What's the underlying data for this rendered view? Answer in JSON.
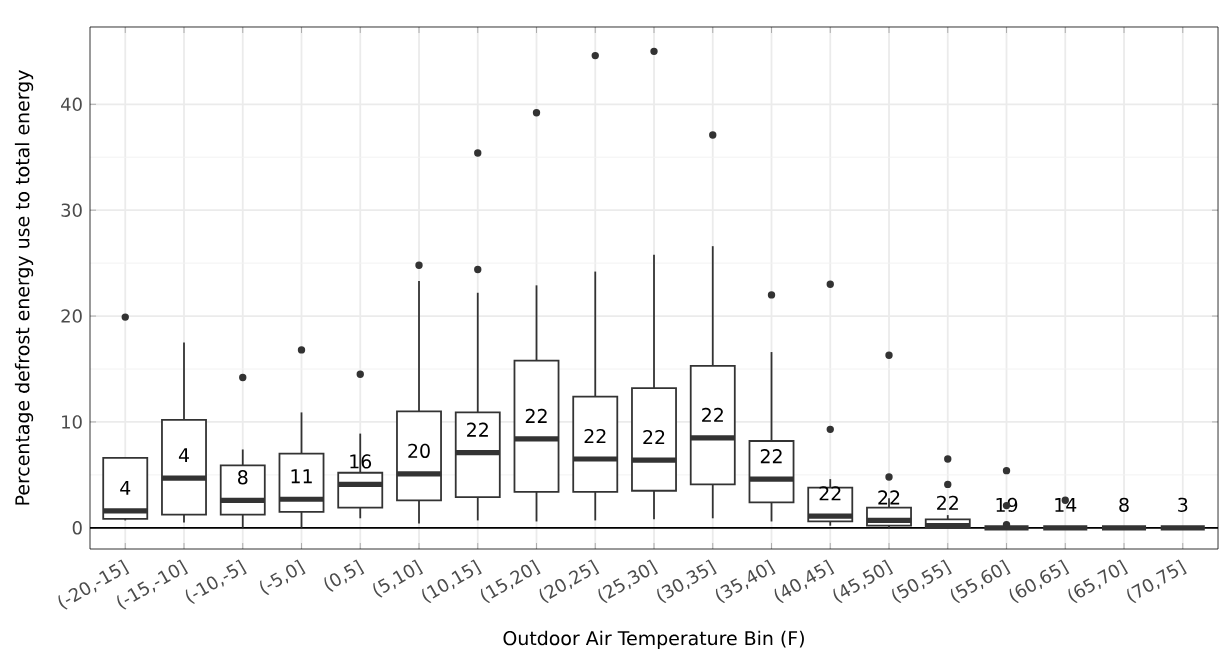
{
  "chart_data": {
    "type": "box",
    "xlabel": "Outdoor Air Temperature Bin (F)",
    "ylabel": "Percentage defrost energy use to total energy",
    "categories": [
      "(-20,-15]",
      "(-15,-10]",
      "(-10,-5]",
      "(-5,0]",
      "(0,5]",
      "(5,10]",
      "(10,15]",
      "(15,20]",
      "(20,25]",
      "(25,30]",
      "(30,35]",
      "(35,40]",
      "(40,45]",
      "(45,50]",
      "(50,55]",
      "(55,60]",
      "(60,65]",
      "(65,70]",
      "(70,75]"
    ],
    "boxes": [
      {
        "low": 0.7,
        "q1": 0.85,
        "median": 1.6,
        "q3": 6.6,
        "high": 6.6,
        "outliers": [
          19.9
        ]
      },
      {
        "low": 0.5,
        "q1": 1.25,
        "median": 4.7,
        "q3": 10.2,
        "high": 17.5
      },
      {
        "low": 0,
        "q1": 1.25,
        "median": 2.6,
        "q3": 5.9,
        "high": 7.4,
        "outliers": [
          14.2
        ]
      },
      {
        "low": 0,
        "q1": 1.5,
        "median": 2.7,
        "q3": 7.0,
        "high": 10.9,
        "outliers": [
          16.8
        ]
      },
      {
        "low": 0.9,
        "q1": 1.9,
        "median": 4.1,
        "q3": 5.2,
        "high": 8.9,
        "outliers": [
          14.5
        ]
      },
      {
        "low": 0.4,
        "q1": 2.6,
        "median": 5.1,
        "q3": 11.0,
        "high": 23.3,
        "outliers": [
          24.8
        ]
      },
      {
        "low": 0.7,
        "q1": 2.9,
        "median": 7.1,
        "q3": 10.9,
        "high": 22.2,
        "outliers": [
          35.4,
          24.4
        ]
      },
      {
        "low": 0.6,
        "q1": 3.4,
        "median": 8.4,
        "q3": 15.8,
        "high": 22.9,
        "outliers": [
          39.2
        ]
      },
      {
        "low": 0.7,
        "q1": 3.4,
        "median": 6.5,
        "q3": 12.4,
        "high": 24.2,
        "outliers": [
          44.6
        ]
      },
      {
        "low": 0.8,
        "q1": 3.5,
        "median": 6.4,
        "q3": 13.2,
        "high": 25.8,
        "outliers": [
          45.0
        ]
      },
      {
        "low": 0.9,
        "q1": 4.1,
        "median": 8.5,
        "q3": 15.3,
        "high": 26.6,
        "outliers": [
          37.1
        ]
      },
      {
        "low": 0.6,
        "q1": 2.4,
        "median": 4.6,
        "q3": 8.2,
        "high": 16.6,
        "outliers": [
          22.0
        ]
      },
      {
        "low": 0.2,
        "q1": 0.6,
        "median": 1.1,
        "q3": 3.8,
        "high": 4.6,
        "outliers": [
          23.0,
          9.3
        ]
      },
      {
        "low": 0,
        "q1": 0.2,
        "median": 0.7,
        "q3": 1.9,
        "high": 2.8,
        "outliers": [
          16.3,
          4.8
        ]
      },
      {
        "low": 0,
        "q1": 0.05,
        "median": 0.2,
        "q3": 0.8,
        "high": 1.2,
        "outliers": [
          6.5,
          4.1
        ]
      },
      {
        "low": 0,
        "q1": 0,
        "median": 0,
        "q3": 0,
        "high": 0,
        "outliers": [
          5.4,
          2.1,
          0.3
        ]
      },
      {
        "low": 0,
        "q1": 0,
        "median": 0,
        "q3": 0,
        "high": 0,
        "outliers": [
          2.6
        ]
      },
      {
        "low": 0,
        "q1": 0,
        "median": 0,
        "q3": 0,
        "high": 0
      },
      {
        "low": 0,
        "q1": 0,
        "median": 0,
        "q3": 0,
        "high": 0
      }
    ],
    "color": "#333333",
    "ylim": [
      -2,
      47.3
    ],
    "yticks": [
      0,
      10,
      20,
      30,
      40
    ],
    "grid": true,
    "ref_lines": [
      {
        "axis": "y",
        "value": 0,
        "color": "#000000"
      }
    ],
    "annotations": [
      "4",
      "4",
      "8",
      "11",
      "16",
      "20",
      "22",
      "22",
      "22",
      "22",
      "22",
      "22",
      "22",
      "22",
      "22",
      "19",
      "14",
      "8",
      "3"
    ]
  }
}
